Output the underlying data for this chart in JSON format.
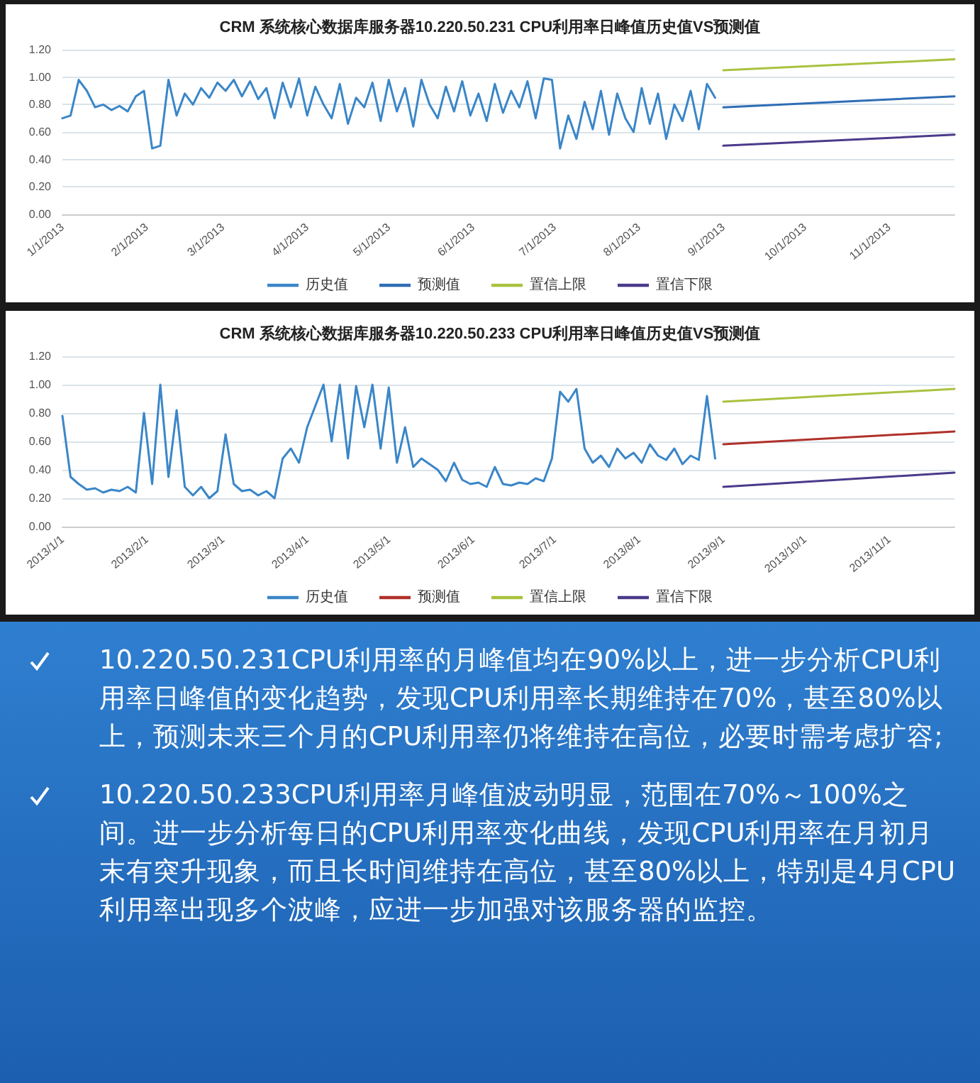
{
  "chart_data": [
    {
      "type": "line",
      "title": "CRM 系统核心数据库服务器10.220.50.231 CPU利用率日峰值历史值VS预测值",
      "xlim": [
        "2013-01-01",
        "2013-11-25"
      ],
      "ylim": [
        0,
        1.2
      ],
      "yticks": [
        {
          "value": 0,
          "label": "0.00"
        },
        {
          "value": 0.2,
          "label": "0.20"
        },
        {
          "value": 0.4,
          "label": "0.40"
        },
        {
          "value": 0.6,
          "label": "0.60"
        },
        {
          "value": 0.8,
          "label": "0.80"
        },
        {
          "value": 1,
          "label": "1.00"
        },
        {
          "value": 1.2,
          "label": "1.20"
        }
      ],
      "xticks": [
        {
          "value": "2013-01-01",
          "label": "1/1/2013"
        },
        {
          "value": "2013-02-01",
          "label": "2/1/2013"
        },
        {
          "value": "2013-03-01",
          "label": "3/1/2013"
        },
        {
          "value": "2013-04-01",
          "label": "4/1/2013"
        },
        {
          "value": "2013-05-01",
          "label": "5/1/2013"
        },
        {
          "value": "2013-06-01",
          "label": "6/1/2013"
        },
        {
          "value": "2013-07-01",
          "label": "7/1/2013"
        },
        {
          "value": "2013-08-01",
          "label": "8/1/2013"
        },
        {
          "value": "2013-09-01",
          "label": "9/1/2013"
        },
        {
          "value": "2013-10-01",
          "label": "10/1/2013"
        },
        {
          "value": "2013-11-01",
          "label": "11/1/2013"
        }
      ],
      "grid": "y",
      "legend": "bottom",
      "marker": "none",
      "line_style": "solid",
      "x": [
        "2013-01-01",
        "2013-01-04",
        "2013-01-07",
        "2013-01-10",
        "2013-01-13",
        "2013-01-16",
        "2013-01-19",
        "2013-01-22",
        "2013-01-25",
        "2013-01-28",
        "2013-01-31",
        "2013-02-03",
        "2013-02-06",
        "2013-02-09",
        "2013-02-12",
        "2013-02-15",
        "2013-02-18",
        "2013-02-21",
        "2013-02-24",
        "2013-02-27",
        "2013-03-02",
        "2013-03-05",
        "2013-03-08",
        "2013-03-11",
        "2013-03-14",
        "2013-03-17",
        "2013-03-20",
        "2013-03-23",
        "2013-03-26",
        "2013-03-29",
        "2013-04-01",
        "2013-04-04",
        "2013-04-07",
        "2013-04-10",
        "2013-04-13",
        "2013-04-16",
        "2013-04-19",
        "2013-04-22",
        "2013-04-25",
        "2013-04-28",
        "2013-05-01",
        "2013-05-04",
        "2013-05-07",
        "2013-05-10",
        "2013-05-13",
        "2013-05-16",
        "2013-05-19",
        "2013-05-22",
        "2013-05-25",
        "2013-05-28",
        "2013-05-31",
        "2013-06-03",
        "2013-06-06",
        "2013-06-09",
        "2013-06-12",
        "2013-06-15",
        "2013-06-18",
        "2013-06-21",
        "2013-06-24",
        "2013-06-27",
        "2013-06-30",
        "2013-07-03",
        "2013-07-06",
        "2013-07-09",
        "2013-07-12",
        "2013-07-15",
        "2013-07-18",
        "2013-07-21",
        "2013-07-24",
        "2013-07-27",
        "2013-07-30",
        "2013-08-02",
        "2013-08-05",
        "2013-08-08",
        "2013-08-11",
        "2013-08-14",
        "2013-08-17",
        "2013-08-20",
        "2013-08-23",
        "2013-08-26",
        "2013-08-29"
      ],
      "series": [
        {
          "name": "历史值",
          "color": "#3a86c8",
          "values": [
            0.7,
            0.72,
            0.98,
            0.9,
            0.78,
            0.8,
            0.76,
            0.79,
            0.75,
            0.86,
            0.9,
            0.48,
            0.5,
            0.98,
            0.72,
            0.88,
            0.8,
            0.92,
            0.85,
            0.96,
            0.9,
            0.98,
            0.86,
            0.97,
            0.84,
            0.92,
            0.7,
            0.96,
            0.78,
            0.99,
            0.72,
            0.93,
            0.8,
            0.7,
            0.95,
            0.66,
            0.85,
            0.78,
            0.96,
            0.68,
            0.98,
            0.75,
            0.92,
            0.64,
            0.98,
            0.8,
            0.7,
            0.93,
            0.75,
            0.97,
            0.72,
            0.88,
            0.68,
            0.95,
            0.74,
            0.9,
            0.78,
            0.97,
            0.7,
            0.99,
            0.98,
            0.48,
            0.72,
            0.55,
            0.82,
            0.62,
            0.9,
            0.58,
            0.88,
            0.7,
            0.6,
            0.92,
            0.66,
            0.88,
            0.55,
            0.8,
            0.68,
            0.9,
            0.62,
            0.95,
            0.85
          ]
        },
        {
          "name": "预测值",
          "color": "#2f6db5",
          "x": [
            "2013-09-01",
            "2013-11-25"
          ],
          "values": [
            0.78,
            0.86
          ]
        },
        {
          "name": "置信上限",
          "color": "#a9c23f",
          "x": [
            "2013-09-01",
            "2013-11-25"
          ],
          "values": [
            1.05,
            1.13
          ]
        },
        {
          "name": "置信下限",
          "color": "#4b3a8a",
          "x": [
            "2013-09-01",
            "2013-11-25"
          ],
          "values": [
            0.5,
            0.58
          ]
        }
      ]
    },
    {
      "type": "line",
      "title": "CRM 系统核心数据库服务器10.220.50.233 CPU利用率日峰值历史值VS预测值",
      "xlim": [
        "2013-01-01",
        "2013-11-25"
      ],
      "ylim": [
        0,
        1.2
      ],
      "yticks": [
        {
          "value": 0,
          "label": "0.00"
        },
        {
          "value": 0.2,
          "label": "0.20"
        },
        {
          "value": 0.4,
          "label": "0.40"
        },
        {
          "value": 0.6,
          "label": "0.60"
        },
        {
          "value": 0.8,
          "label": "0.80"
        },
        {
          "value": 1,
          "label": "1.00"
        },
        {
          "value": 1.2,
          "label": "1.20"
        }
      ],
      "xticks": [
        {
          "value": "2013-01-01",
          "label": "2013/1/1"
        },
        {
          "value": "2013-02-01",
          "label": "2013/2/1"
        },
        {
          "value": "2013-03-01",
          "label": "2013/3/1"
        },
        {
          "value": "2013-04-01",
          "label": "2013/4/1"
        },
        {
          "value": "2013-05-01",
          "label": "2013/5/1"
        },
        {
          "value": "2013-06-01",
          "label": "2013/6/1"
        },
        {
          "value": "2013-07-01",
          "label": "2013/7/1"
        },
        {
          "value": "2013-08-01",
          "label": "2013/8/1"
        },
        {
          "value": "2013-09-01",
          "label": "2013/9/1"
        },
        {
          "value": "2013-10-01",
          "label": "2013/10/1"
        },
        {
          "value": "2013-11-01",
          "label": "2013/11/1"
        }
      ],
      "grid": "y",
      "legend": "bottom",
      "marker": "none",
      "line_style": "solid",
      "x": [
        "2013-01-01",
        "2013-01-04",
        "2013-01-07",
        "2013-01-10",
        "2013-01-13",
        "2013-01-16",
        "2013-01-19",
        "2013-01-22",
        "2013-01-25",
        "2013-01-28",
        "2013-01-31",
        "2013-02-03",
        "2013-02-06",
        "2013-02-09",
        "2013-02-12",
        "2013-02-15",
        "2013-02-18",
        "2013-02-21",
        "2013-02-24",
        "2013-02-27",
        "2013-03-02",
        "2013-03-05",
        "2013-03-08",
        "2013-03-11",
        "2013-03-14",
        "2013-03-17",
        "2013-03-20",
        "2013-03-23",
        "2013-03-26",
        "2013-03-29",
        "2013-04-01",
        "2013-04-04",
        "2013-04-07",
        "2013-04-10",
        "2013-04-13",
        "2013-04-16",
        "2013-04-19",
        "2013-04-22",
        "2013-04-25",
        "2013-04-28",
        "2013-05-01",
        "2013-05-04",
        "2013-05-07",
        "2013-05-10",
        "2013-05-13",
        "2013-05-16",
        "2013-05-19",
        "2013-05-22",
        "2013-05-25",
        "2013-05-28",
        "2013-05-31",
        "2013-06-03",
        "2013-06-06",
        "2013-06-09",
        "2013-06-12",
        "2013-06-15",
        "2013-06-18",
        "2013-06-21",
        "2013-06-24",
        "2013-06-27",
        "2013-06-30",
        "2013-07-03",
        "2013-07-06",
        "2013-07-09",
        "2013-07-12",
        "2013-07-15",
        "2013-07-18",
        "2013-07-21",
        "2013-07-24",
        "2013-07-27",
        "2013-07-30",
        "2013-08-02",
        "2013-08-05",
        "2013-08-08",
        "2013-08-11",
        "2013-08-14",
        "2013-08-17",
        "2013-08-20",
        "2013-08-23",
        "2013-08-26",
        "2013-08-29"
      ],
      "series": [
        {
          "name": "历史值",
          "color": "#3a86c8",
          "values": [
            0.78,
            0.35,
            0.3,
            0.26,
            0.27,
            0.24,
            0.26,
            0.25,
            0.28,
            0.24,
            0.8,
            0.3,
            1.0,
            0.35,
            0.82,
            0.28,
            0.22,
            0.28,
            0.2,
            0.25,
            0.65,
            0.3,
            0.25,
            0.26,
            0.22,
            0.25,
            0.2,
            0.48,
            0.55,
            0.45,
            0.7,
            0.85,
            1.0,
            0.6,
            1.0,
            0.48,
            0.99,
            0.7,
            1.0,
            0.55,
            0.98,
            0.45,
            0.7,
            0.42,
            0.48,
            0.44,
            0.4,
            0.32,
            0.45,
            0.33,
            0.3,
            0.31,
            0.28,
            0.42,
            0.3,
            0.29,
            0.31,
            0.3,
            0.34,
            0.32,
            0.48,
            0.95,
            0.88,
            0.97,
            0.55,
            0.45,
            0.5,
            0.42,
            0.55,
            0.48,
            0.52,
            0.45,
            0.58,
            0.5,
            0.47,
            0.55,
            0.44,
            0.5,
            0.47,
            0.92,
            0.48
          ]
        },
        {
          "name": "预测值",
          "color": "#b0302a",
          "x": [
            "2013-09-01",
            "2013-11-25"
          ],
          "values": [
            0.58,
            0.67
          ]
        },
        {
          "name": "置信上限",
          "color": "#a9c23f",
          "x": [
            "2013-09-01",
            "2013-11-25"
          ],
          "values": [
            0.88,
            0.97
          ]
        },
        {
          "name": "置信下限",
          "color": "#4b3a8a",
          "x": [
            "2013-09-01",
            "2013-11-25"
          ],
          "values": [
            0.28,
            0.38
          ]
        }
      ]
    },
    {
      "type": "other",
      "annotations": [
        "10.220.50.231CPU利用率的月峰值均在90%以上，进一步分析CPU利用率日峰值的变化趋势，发现CPU利用率长期维持在70%，甚至80%以上，预测未来三个月的CPU利用率仍将维持在高位，必要时需考虑扩容;",
        "10.220.50.233CPU利用率月峰值波动明显，范围在70%～100%之间。进一步分析每日的CPU利用率变化曲线，发现CPU利用率在月初月末有突升现象，而且长时间维持在高位，甚至80%以上，特别是4月CPU利用率出现多个波峰，应进一步加强对该服务器的监控。"
      ]
    }
  ]
}
